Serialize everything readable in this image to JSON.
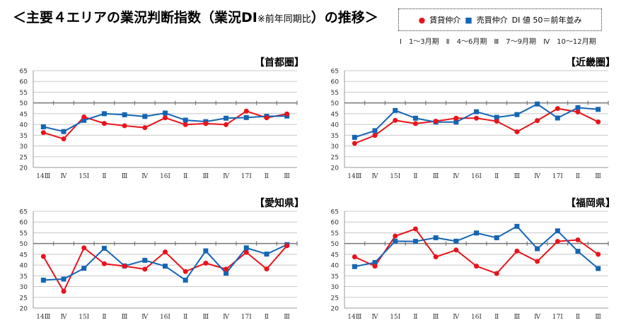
{
  "title": {
    "main_a": "＜主要４エリアの業況判断指数（業況DI",
    "main_note": "※前年同期比",
    "main_b": "）の推移＞"
  },
  "legend": {
    "rent_marker": "●",
    "rent": "賃貸仲介",
    "sale_marker": "■",
    "sale": "売買仲介",
    "note": "DI 値 50＝前年並み"
  },
  "period_note": "Ⅰ　1～3月期　Ⅱ　4～6月期　Ⅲ　7～9月期　Ⅳ　10～12月期",
  "colors": {
    "rent": "#e8141b",
    "sale": "#1565b4"
  },
  "chart_data": [
    {
      "type": "line",
      "title": "【首都圏】",
      "categories": [
        "14Ⅲ",
        "Ⅳ",
        "15Ⅰ",
        "Ⅱ",
        "Ⅲ",
        "Ⅳ",
        "16Ⅰ",
        "Ⅱ",
        "Ⅲ",
        "Ⅳ",
        "17Ⅰ",
        "Ⅱ",
        "Ⅲ"
      ],
      "ylim": [
        20,
        65
      ],
      "yticks": [
        20,
        25,
        30,
        35,
        40,
        45,
        50,
        55,
        60,
        65
      ],
      "grid": true,
      "series": [
        {
          "name": "賃貸仲介",
          "values": [
            36.2,
            33.3,
            43.5,
            40.5,
            39.4,
            38.5,
            43.1,
            39.9,
            40.4,
            39.9,
            46.2,
            43.1,
            44.9
          ]
        },
        {
          "name": "売買仲介",
          "values": [
            38.9,
            36.7,
            41.9,
            45.0,
            44.5,
            43.7,
            45.3,
            42.0,
            41.3,
            42.9,
            43.2,
            43.8,
            43.9
          ]
        }
      ]
    },
    {
      "type": "line",
      "title": "【近畿圏】",
      "categories": [
        "14Ⅲ",
        "Ⅳ",
        "15Ⅰ",
        "Ⅱ",
        "Ⅲ",
        "Ⅳ",
        "16Ⅰ",
        "Ⅱ",
        "Ⅲ",
        "Ⅳ",
        "17Ⅰ",
        "Ⅱ",
        "Ⅲ"
      ],
      "ylim": [
        20,
        65
      ],
      "yticks": [
        20,
        25,
        30,
        35,
        40,
        45,
        50,
        55,
        60,
        65
      ],
      "grid": true,
      "series": [
        {
          "name": "賃貸仲介",
          "values": [
            31.2,
            34.9,
            41.9,
            40.4,
            41.5,
            42.9,
            42.9,
            41.5,
            36.6,
            41.8,
            47.4,
            45.8,
            41.2
          ]
        },
        {
          "name": "売買仲介",
          "values": [
            34.0,
            37.1,
            46.5,
            42.9,
            41.1,
            41.1,
            45.9,
            43.3,
            44.6,
            49.5,
            43.0,
            47.8,
            47.0
          ]
        }
      ]
    },
    {
      "type": "line",
      "title": "【愛知県】",
      "categories": [
        "14Ⅲ",
        "Ⅳ",
        "15Ⅰ",
        "Ⅱ",
        "Ⅲ",
        "Ⅳ",
        "16Ⅰ",
        "Ⅱ",
        "Ⅲ",
        "Ⅳ",
        "17Ⅰ",
        "Ⅱ",
        "Ⅲ"
      ],
      "ylim": [
        20,
        65
      ],
      "yticks": [
        20,
        25,
        30,
        35,
        40,
        45,
        50,
        55,
        60,
        65
      ],
      "grid": true,
      "series": [
        {
          "name": "賃貸仲介",
          "values": [
            44.0,
            27.8,
            48.0,
            40.6,
            39.5,
            38.1,
            46.1,
            37.0,
            40.9,
            38.1,
            45.9,
            38.2,
            49.0
          ]
        },
        {
          "name": "売買仲介",
          "values": [
            33.0,
            33.5,
            38.5,
            47.8,
            39.6,
            42.2,
            39.5,
            33.0,
            46.6,
            36.2,
            48.0,
            45.1,
            49.5
          ]
        }
      ]
    },
    {
      "type": "line",
      "title": "【福岡県】",
      "categories": [
        "14Ⅲ",
        "Ⅳ",
        "15Ⅰ",
        "Ⅱ",
        "Ⅲ",
        "Ⅳ",
        "16Ⅰ",
        "Ⅱ",
        "Ⅲ",
        "Ⅳ",
        "17Ⅰ",
        "Ⅱ",
        "Ⅲ"
      ],
      "ylim": [
        20,
        65
      ],
      "yticks": [
        20,
        25,
        30,
        35,
        40,
        45,
        50,
        55,
        60,
        65
      ],
      "grid": true,
      "series": [
        {
          "name": "賃貸仲介",
          "values": [
            43.8,
            39.5,
            53.5,
            56.8,
            43.8,
            47.0,
            39.5,
            36.1,
            46.5,
            41.7,
            51.0,
            51.7,
            45.0
          ]
        },
        {
          "name": "売買仲介",
          "values": [
            39.3,
            41.2,
            51.1,
            51.0,
            52.7,
            51.1,
            54.9,
            52.7,
            58.0,
            47.6,
            55.9,
            46.4,
            38.4
          ]
        }
      ]
    }
  ]
}
